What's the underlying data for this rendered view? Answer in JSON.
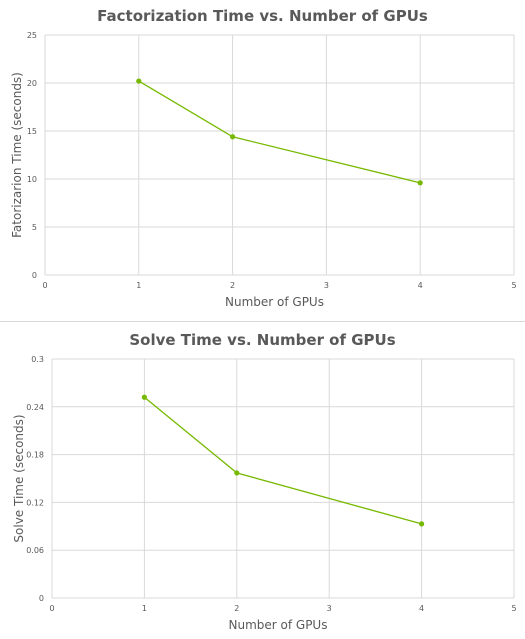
{
  "colors": {
    "series": "#76b900",
    "grid": "#d9d9d9",
    "text": "#595959"
  },
  "chart_data": [
    {
      "type": "line",
      "title": "Factorization Time vs. Number of GPUs",
      "xlabel": "Number of GPUs",
      "ylabel": "Fatorizarion Time (seconds)",
      "xlim": [
        0,
        5
      ],
      "ylim": [
        0,
        25
      ],
      "xticks": [
        "0",
        "1",
        "2",
        "3",
        "4",
        "5"
      ],
      "yticks": [
        "0",
        "5",
        "10",
        "15",
        "20",
        "25"
      ],
      "grid": true,
      "series": [
        {
          "x": [
            1,
            2,
            4
          ],
          "y": [
            20.2,
            14.4,
            9.6
          ]
        }
      ]
    },
    {
      "type": "line",
      "title": "Solve Time vs. Number of GPUs",
      "xlabel": "Number of GPUs",
      "ylabel": "Solve Time (seconds)",
      "xlim": [
        0,
        5
      ],
      "ylim": [
        0,
        0.3
      ],
      "xticks": [
        "0",
        "1",
        "2",
        "3",
        "4",
        "5"
      ],
      "yticks": [
        "0",
        "0.06",
        "0.12",
        "0.18",
        "0.24",
        "0.3"
      ],
      "grid": true,
      "series": [
        {
          "x": [
            1,
            2,
            4
          ],
          "y": [
            0.252,
            0.157,
            0.093
          ]
        }
      ]
    }
  ]
}
